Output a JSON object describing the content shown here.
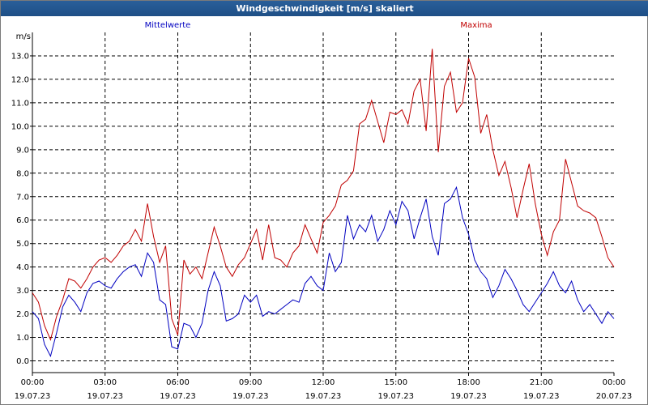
{
  "window": {
    "title": "Windgeschwindigkeit [m/s] skaliert"
  },
  "colors": {
    "mittel": "#0000c0",
    "maxima": "#c00000",
    "grid": "#000000"
  },
  "chart_data": {
    "type": "line",
    "title": "Windgeschwindigkeit [m/s] skaliert",
    "ylabel": "m/s",
    "xlabel": "",
    "ylim": [
      -0.5,
      14.0
    ],
    "yticks": [
      "0.0",
      "1.0",
      "2.0",
      "3.0",
      "4.0",
      "5.0",
      "6.0",
      "7.0",
      "8.0",
      "9.0",
      "10.0",
      "11.0",
      "12.0",
      "13.0"
    ],
    "xticks": [
      {
        "time": "00:00",
        "date": "19.07.23"
      },
      {
        "time": "03:00",
        "date": "19.07.23"
      },
      {
        "time": "06:00",
        "date": "19.07.23"
      },
      {
        "time": "09:00",
        "date": "19.07.23"
      },
      {
        "time": "12:00",
        "date": "19.07.23"
      },
      {
        "time": "15:00",
        "date": "19.07.23"
      },
      {
        "time": "18:00",
        "date": "19.07.23"
      },
      {
        "time": "21:00",
        "date": "19.07.23"
      },
      {
        "time": "00:00",
        "date": "20.07.23"
      }
    ],
    "grid": true,
    "x_hours": [
      0,
      0.25,
      0.5,
      0.75,
      1,
      1.25,
      1.5,
      1.75,
      2,
      2.25,
      2.5,
      2.75,
      3,
      3.25,
      3.5,
      3.75,
      4,
      4.25,
      4.5,
      4.75,
      5,
      5.25,
      5.5,
      5.75,
      6,
      6.25,
      6.5,
      6.75,
      7,
      7.25,
      7.5,
      7.75,
      8,
      8.25,
      8.5,
      8.75,
      9,
      9.25,
      9.5,
      9.75,
      10,
      10.25,
      10.5,
      10.75,
      11,
      11.25,
      11.5,
      11.75,
      12,
      12.25,
      12.5,
      12.75,
      13,
      13.25,
      13.5,
      13.75,
      14,
      14.25,
      14.5,
      14.75,
      15,
      15.25,
      15.5,
      15.75,
      16,
      16.25,
      16.5,
      16.75,
      17,
      17.25,
      17.5,
      17.75,
      18,
      18.25,
      18.5,
      18.75,
      19,
      19.25,
      19.5,
      19.75,
      20,
      20.25,
      20.5,
      20.75,
      21,
      21.25,
      21.5,
      21.75,
      22,
      22.25,
      22.5,
      22.75,
      23,
      23.25,
      23.5,
      23.75,
      24
    ],
    "series": [
      {
        "name": "Mittelwerte",
        "color": "#0000c0",
        "values": [
          2.1,
          1.8,
          0.7,
          0.2,
          1.2,
          2.3,
          2.8,
          2.5,
          2.1,
          2.9,
          3.3,
          3.4,
          3.2,
          3.1,
          3.5,
          3.8,
          4.0,
          4.1,
          3.6,
          4.6,
          4.2,
          2.6,
          2.4,
          0.6,
          0.5,
          1.6,
          1.5,
          1.0,
          1.6,
          3.0,
          3.8,
          3.2,
          1.7,
          1.8,
          2.0,
          2.8,
          2.5,
          2.8,
          1.9,
          2.1,
          2.0,
          2.2,
          2.4,
          2.6,
          2.5,
          3.3,
          3.6,
          3.2,
          3.0,
          4.6,
          3.8,
          4.2,
          6.2,
          5.2,
          5.8,
          5.5,
          6.2,
          5.1,
          5.6,
          6.4,
          5.8,
          6.8,
          6.4,
          5.2,
          6.1,
          6.9,
          5.3,
          4.5,
          6.7,
          6.9,
          7.4,
          6.1,
          5.4,
          4.3,
          3.8,
          3.5,
          2.7,
          3.2,
          3.9,
          3.5,
          3.0,
          2.4,
          2.1,
          2.5,
          2.9,
          3.3,
          3.8,
          3.2,
          2.9,
          3.4,
          2.6,
          2.1,
          2.4,
          2.0,
          1.6,
          2.1,
          1.8
        ]
      },
      {
        "name": "Maxima",
        "color": "#c00000",
        "values": [
          2.9,
          2.5,
          1.5,
          0.9,
          1.9,
          2.6,
          3.5,
          3.4,
          3.1,
          3.5,
          4.0,
          4.3,
          4.4,
          4.2,
          4.5,
          4.9,
          5.1,
          5.6,
          5.1,
          6.7,
          5.3,
          4.2,
          4.9,
          1.8,
          1.1,
          4.3,
          3.7,
          4.0,
          3.5,
          4.6,
          5.7,
          4.9,
          4.0,
          3.6,
          4.1,
          4.4,
          5.0,
          5.6,
          4.3,
          5.8,
          4.4,
          4.3,
          4.0,
          4.6,
          4.9,
          5.8,
          5.2,
          4.6,
          5.9,
          6.2,
          6.6,
          7.5,
          7.7,
          8.1,
          10.1,
          10.3,
          11.1,
          10.2,
          9.3,
          10.6,
          10.5,
          10.7,
          10.1,
          11.5,
          12.0,
          9.8,
          13.3,
          8.9,
          11.7,
          12.3,
          10.6,
          11.0,
          12.9,
          12.1,
          9.7,
          10.5,
          9.0,
          7.9,
          8.5,
          7.4,
          6.1,
          7.3,
          8.4,
          6.7,
          5.4,
          4.5,
          5.5,
          6.0,
          8.6,
          7.6,
          6.6,
          6.4,
          6.3,
          6.1,
          5.3,
          4.4,
          4.0
        ]
      }
    ]
  }
}
